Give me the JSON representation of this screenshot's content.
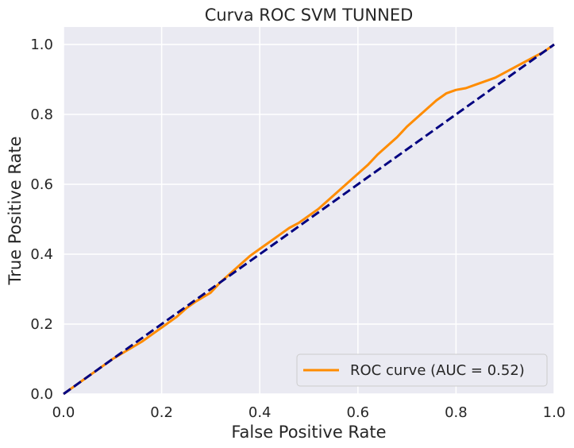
{
  "chart_data": {
    "type": "line",
    "title": "Curva ROC SVM TUNNED",
    "xlabel": "False Positive Rate",
    "ylabel": "True Positive Rate",
    "xlim": [
      0.0,
      1.0
    ],
    "ylim": [
      0.0,
      1.05
    ],
    "xticks": [
      0.0,
      0.2,
      0.4,
      0.6,
      0.8,
      1.0
    ],
    "xtick_labels": [
      "0.0",
      "0.2",
      "0.4",
      "0.6",
      "0.8",
      "1.0"
    ],
    "yticks": [
      0.0,
      0.2,
      0.4,
      0.6,
      0.8,
      1.0
    ],
    "ytick_labels": [
      "0.0",
      "0.2",
      "0.4",
      "0.6",
      "0.8",
      "1.0"
    ],
    "grid": true,
    "legend_position": "lower-right",
    "series": [
      {
        "name": "ROC curve (AUC = 0.52)",
        "color": "#ff8c00",
        "style": "solid",
        "x": [
          0.0,
          0.02,
          0.05,
          0.08,
          0.1,
          0.13,
          0.16,
          0.18,
          0.2,
          0.23,
          0.25,
          0.27,
          0.3,
          0.32,
          0.34,
          0.36,
          0.38,
          0.4,
          0.42,
          0.44,
          0.46,
          0.48,
          0.5,
          0.52,
          0.54,
          0.56,
          0.58,
          0.6,
          0.62,
          0.64,
          0.66,
          0.68,
          0.7,
          0.72,
          0.74,
          0.76,
          0.78,
          0.8,
          0.82,
          0.84,
          0.86,
          0.88,
          0.9,
          0.92,
          0.94,
          0.96,
          0.98,
          1.0
        ],
        "y": [
          0.0,
          0.02,
          0.05,
          0.08,
          0.1,
          0.125,
          0.15,
          0.17,
          0.19,
          0.22,
          0.245,
          0.265,
          0.29,
          0.32,
          0.345,
          0.37,
          0.395,
          0.415,
          0.435,
          0.455,
          0.475,
          0.49,
          0.51,
          0.53,
          0.555,
          0.58,
          0.605,
          0.63,
          0.655,
          0.685,
          0.71,
          0.735,
          0.765,
          0.79,
          0.815,
          0.84,
          0.86,
          0.87,
          0.875,
          0.885,
          0.895,
          0.905,
          0.92,
          0.935,
          0.95,
          0.965,
          0.98,
          1.0
        ]
      },
      {
        "name": "",
        "color": "#000080",
        "style": "dashed",
        "x": [
          0.0,
          1.0
        ],
        "y": [
          0.0,
          1.0
        ]
      }
    ]
  }
}
